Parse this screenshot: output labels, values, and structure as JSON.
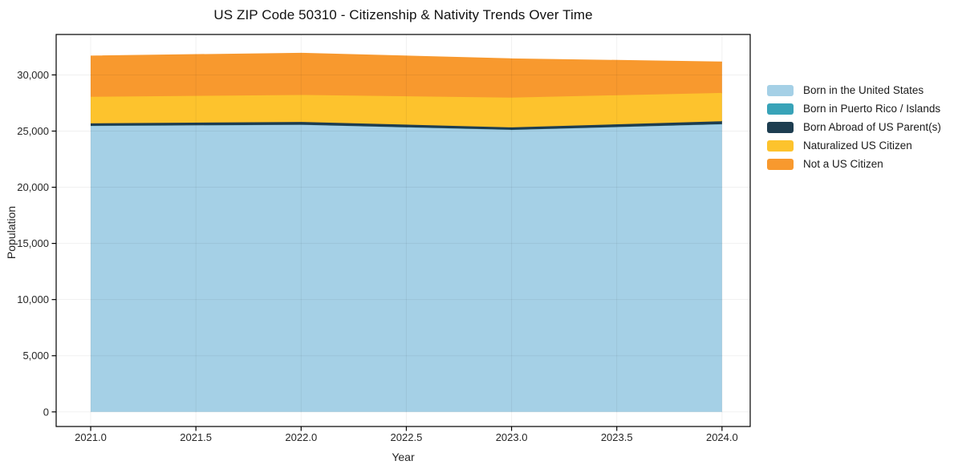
{
  "title": "US ZIP Code 50310 - Citizenship & Nativity Trends Over Time",
  "chart_data": {
    "type": "area",
    "stacked": true,
    "title": "US ZIP Code 50310 - Citizenship & Nativity Trends Over Time",
    "xlabel": "Year",
    "ylabel": "Population",
    "x": [
      2021,
      2022,
      2023,
      2024
    ],
    "series": [
      {
        "name": "Born in the United States",
        "color": "#a5d0e6",
        "values": [
          25450,
          25550,
          25100,
          25600
        ]
      },
      {
        "name": "Born in Puerto Rico / Islands",
        "color": "#38a3b8",
        "values": [
          15,
          15,
          10,
          15
        ]
      },
      {
        "name": "Born Abroad of US Parent(s)",
        "color": "#1d3d50",
        "values": [
          220,
          250,
          220,
          260
        ]
      },
      {
        "name": "Naturalized US Citizen",
        "color": "#fdc32d",
        "values": [
          2365,
          2400,
          2650,
          2525
        ]
      },
      {
        "name": "Not a US Citizen",
        "color": "#f8992e",
        "values": [
          3600,
          3685,
          3420,
          2720
        ]
      }
    ],
    "stacked_totals": [
      31650,
      31900,
      31400,
      31120
    ],
    "xlim": [
      2020.836,
      2024.134
    ],
    "ylim": [
      -1300,
      33600
    ],
    "x_ticks": [
      2021,
      2021.5,
      2022,
      2022.5,
      2023,
      2023.5,
      2024
    ],
    "x_tick_labels": [
      "2021.0",
      "2021.5",
      "2022.0",
      "2022.5",
      "2023.0",
      "2023.5",
      "2024.0"
    ],
    "y_ticks": [
      0,
      5000,
      10000,
      15000,
      20000,
      25000,
      30000
    ],
    "y_tick_labels": [
      "0",
      "5,000",
      "10,000",
      "15,000",
      "20,000",
      "25,000",
      "30,000"
    ],
    "grid": true,
    "legend_position": "right"
  },
  "colors": {
    "background": "#ffffff",
    "frame": "#000000",
    "grid": "rgba(0,0,0,0.06)",
    "tick": "#000000",
    "tick_text": "#262626",
    "title_text": "#111111"
  }
}
